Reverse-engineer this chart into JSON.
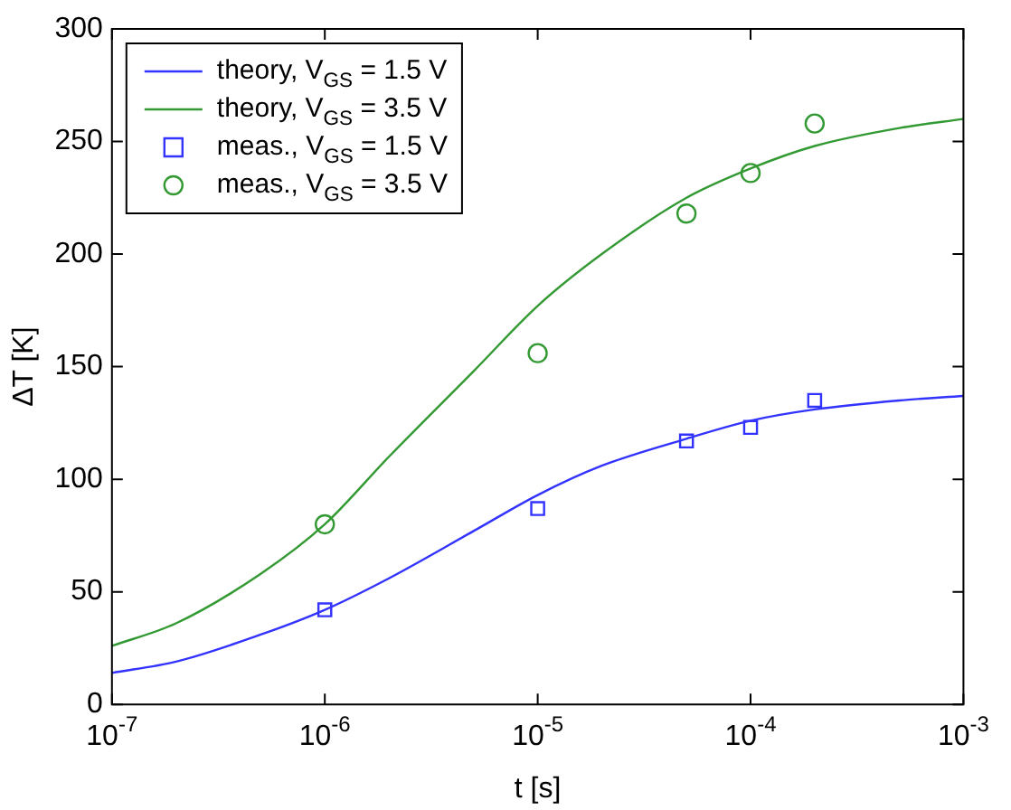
{
  "chart_data": {
    "type": "line",
    "xlabel": "t [s]",
    "ylabel": "ΔT [K]",
    "log": "x",
    "grid": false,
    "legend": "top left",
    "xlim": [
      1e-07,
      0.001
    ],
    "xticks": [
      {
        "value": 1e-07,
        "label": "10$^{-7}$"
      },
      {
        "value": 1e-06,
        "label": "10$^{-6}$"
      },
      {
        "value": 1e-05,
        "label": "10$^{-5}$"
      },
      {
        "value": 0.0001,
        "label": "10$^{-4}$"
      },
      {
        "value": 0.001,
        "label": "10$^{-3}$"
      }
    ],
    "ylim": [
      0,
      300
    ],
    "yticks": [
      0,
      50,
      100,
      150,
      200,
      250,
      300
    ],
    "series": [
      {
        "name": "theory, V$_{GS}$ = 1.5 V",
        "type": "line",
        "marker": "none",
        "color": "#3333ff",
        "x": [
          1e-07,
          2e-07,
          5e-07,
          1e-06,
          2e-06,
          5e-06,
          1e-05,
          2e-05,
          5e-05,
          0.0001,
          0.0002,
          0.0005,
          0.001
        ],
        "values": [
          14,
          19,
          31,
          42,
          56,
          77,
          93,
          106,
          118,
          126,
          131,
          135,
          137
        ]
      },
      {
        "name": "theory, V$_{GS}$ = 3.5 V",
        "type": "line",
        "marker": "none",
        "color": "#339933",
        "x": [
          1e-07,
          2e-07,
          5e-07,
          1e-06,
          2e-06,
          5e-06,
          1e-05,
          2e-05,
          5e-05,
          0.0001,
          0.0002,
          0.0005,
          0.001
        ],
        "values": [
          26,
          36,
          58,
          80,
          110,
          148,
          177,
          200,
          225,
          238,
          248,
          256,
          260
        ]
      },
      {
        "name": "meas., V$_{GS}$ = 1.5 V",
        "type": "scatter",
        "marker": "square",
        "color": "#3333ff",
        "x": [
          1e-06,
          1e-05,
          5e-05,
          0.0001,
          0.0002
        ],
        "values": [
          42,
          87,
          117,
          123,
          135
        ]
      },
      {
        "name": "meas., V$_{GS}$ = 3.5 V",
        "type": "scatter",
        "marker": "circle",
        "color": "#339933",
        "x": [
          1e-06,
          1e-05,
          5e-05,
          0.0001,
          0.0002
        ],
        "values": [
          80,
          156,
          218,
          236,
          258
        ]
      }
    ]
  }
}
